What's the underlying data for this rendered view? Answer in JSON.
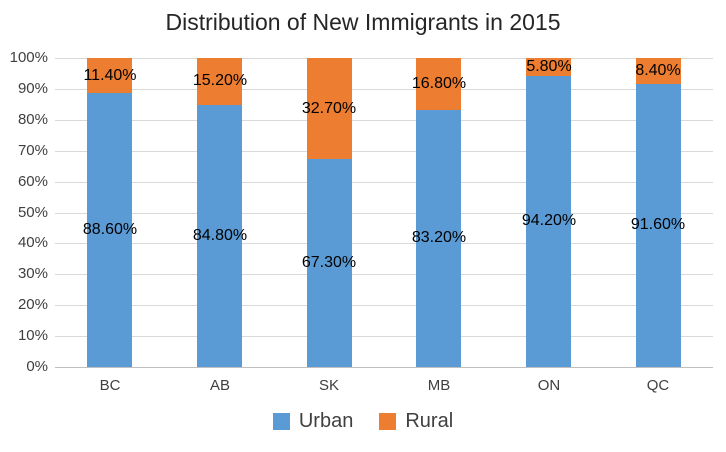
{
  "chart_data": {
    "type": "bar",
    "stacked": true,
    "orientation": "vertical",
    "title": "Distribution of New Immigrants in 2015",
    "categories": [
      "BC",
      "AB",
      "SK",
      "MB",
      "ON",
      "QC"
    ],
    "series": [
      {
        "name": "Urban",
        "color": "#5B9BD5",
        "values": [
          88.6,
          84.8,
          67.3,
          83.2,
          94.2,
          91.6
        ],
        "labels": [
          "88.60%",
          "84.80%",
          "67.30%",
          "83.20%",
          "94.20%",
          "91.60%"
        ]
      },
      {
        "name": "Rural",
        "color": "#ED7D31",
        "values": [
          11.4,
          15.2,
          32.7,
          16.8,
          5.8,
          8.4
        ],
        "labels": [
          "11.40%",
          "15.20%",
          "32.70%",
          "16.80%",
          "5.80%",
          "8.40%"
        ]
      }
    ],
    "y_axis": {
      "min": 0,
      "max": 100,
      "step": 10,
      "tick_labels": [
        "0%",
        "10%",
        "20%",
        "30%",
        "40%",
        "50%",
        "60%",
        "70%",
        "80%",
        "90%",
        "100%"
      ]
    },
    "x_axis": {
      "tick_labels": [
        "BC",
        "AB",
        "SK",
        "MB",
        "ON",
        "QC"
      ]
    },
    "legend": {
      "position": "bottom",
      "entries": [
        "Urban",
        "Rural"
      ]
    },
    "grid": true,
    "colors": {
      "background": "#FFFFFF",
      "title_text": "#262626",
      "axis_text": "#404040",
      "data_label_text": "#000000",
      "gridline": "#D9D9D9",
      "axis_line": "#BFBFBF"
    }
  }
}
